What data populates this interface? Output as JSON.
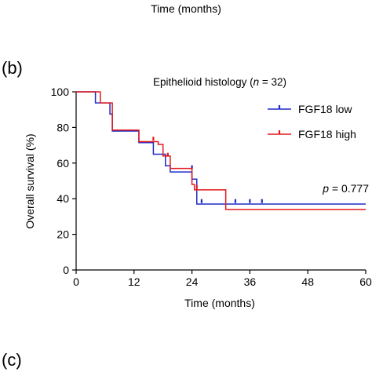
{
  "top_xlabel": "Time (months)",
  "panel_b_label": "(b)",
  "panel_c_label": "(c)",
  "colors": {
    "low": "#1f2cc8",
    "high": "#e31a1c",
    "axis": "#000000"
  },
  "chart_data": {
    "type": "line",
    "title": {
      "prefix": "Epithelioid histology (",
      "n_symbol": "n",
      "suffix": " = 32)"
    },
    "xlabel": "Time (months)",
    "ylabel": "Overall survival (%)",
    "xlim": [
      0,
      60
    ],
    "ylim": [
      0,
      100
    ],
    "xticks": [
      0,
      12,
      24,
      36,
      48,
      60
    ],
    "yticks": [
      0,
      20,
      40,
      60,
      80,
      100
    ],
    "grid": false,
    "legend_position": "top-right",
    "annotation": {
      "p_symbol": "p",
      "text": " = 0.777"
    },
    "series": [
      {
        "name": "FGF18 low",
        "color_key": "low",
        "steps": [
          [
            0,
            100
          ],
          [
            4,
            93.8
          ],
          [
            7,
            87.5
          ],
          [
            7.5,
            78
          ],
          [
            13,
            71.5
          ],
          [
            16,
            65
          ],
          [
            18.5,
            58.5
          ],
          [
            19.5,
            55
          ],
          [
            24,
            51
          ],
          [
            25,
            37
          ],
          [
            60,
            37
          ]
        ],
        "censored": [
          [
            24,
            57
          ],
          [
            26,
            38
          ],
          [
            33,
            38
          ],
          [
            36,
            38
          ],
          [
            38.5,
            38
          ]
        ]
      },
      {
        "name": "FGF18 high",
        "color_key": "high",
        "steps": [
          [
            0,
            100
          ],
          [
            5,
            93.8
          ],
          [
            7.5,
            78.5
          ],
          [
            13,
            72
          ],
          [
            17,
            70.5
          ],
          [
            18,
            64
          ],
          [
            19.5,
            57
          ],
          [
            24,
            48
          ],
          [
            24.5,
            45
          ],
          [
            31,
            34
          ],
          [
            60,
            34
          ]
        ],
        "censored": [
          [
            16,
            73
          ],
          [
            19,
            64
          ],
          [
            25,
            46
          ]
        ]
      }
    ]
  }
}
